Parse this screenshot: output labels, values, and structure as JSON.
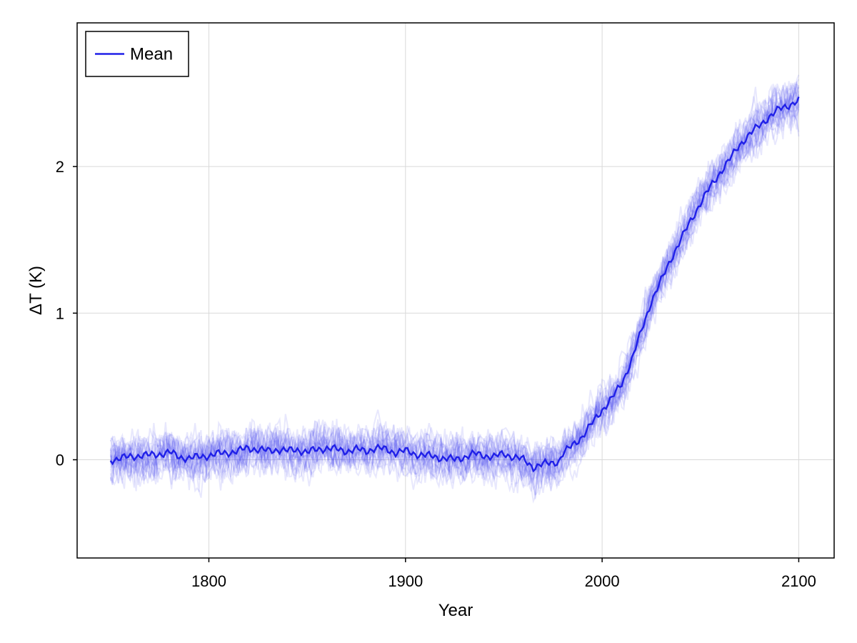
{
  "chart_data": {
    "type": "line",
    "title": "",
    "xlabel": "Year",
    "ylabel": "ΔT (K)",
    "xlim": [
      1733,
      2118
    ],
    "ylim": [
      -0.67,
      2.98
    ],
    "x_ticks": [
      1800,
      1900,
      2000,
      2100
    ],
    "y_ticks": [
      0,
      1,
      2
    ],
    "grid": true,
    "legend": {
      "position": "top-left",
      "entries": [
        "Mean"
      ]
    },
    "colors": {
      "mean": "#2020e8",
      "ensemble": "#4a4af0",
      "grid": "#d9d9d9",
      "frame": "#000000"
    },
    "series": [
      {
        "name": "Mean",
        "x": [
          1750,
          1755,
          1760,
          1765,
          1770,
          1775,
          1780,
          1785,
          1790,
          1795,
          1800,
          1805,
          1810,
          1815,
          1820,
          1825,
          1830,
          1835,
          1840,
          1845,
          1850,
          1855,
          1860,
          1865,
          1870,
          1875,
          1880,
          1885,
          1890,
          1895,
          1900,
          1905,
          1910,
          1915,
          1920,
          1925,
          1930,
          1935,
          1940,
          1945,
          1950,
          1955,
          1960,
          1965,
          1970,
          1975,
          1978,
          1980,
          1985,
          1990,
          1995,
          2000,
          2005,
          2010,
          2015,
          2020,
          2025,
          2030,
          2035,
          2040,
          2045,
          2050,
          2055,
          2060,
          2065,
          2070,
          2075,
          2080,
          2085,
          2090,
          2095,
          2100
        ],
        "y": [
          0.0,
          0.01,
          0.02,
          0.03,
          0.03,
          0.04,
          0.05,
          0.02,
          0.01,
          0.02,
          0.03,
          0.04,
          0.05,
          0.06,
          0.08,
          0.07,
          0.06,
          0.07,
          0.06,
          0.07,
          0.05,
          0.07,
          0.08,
          0.07,
          0.06,
          0.07,
          0.06,
          0.08,
          0.07,
          0.05,
          0.06,
          0.04,
          0.03,
          0.02,
          0.01,
          0.0,
          0.02,
          0.04,
          0.03,
          0.02,
          0.04,
          0.02,
          0.0,
          -0.05,
          -0.03,
          -0.02,
          -0.01,
          0.04,
          0.1,
          0.16,
          0.25,
          0.34,
          0.42,
          0.52,
          0.68,
          0.88,
          1.08,
          1.22,
          1.37,
          1.5,
          1.63,
          1.75,
          1.86,
          1.96,
          2.05,
          2.15,
          2.22,
          2.28,
          2.34,
          2.39,
          2.42,
          2.45
        ]
      }
    ]
  }
}
